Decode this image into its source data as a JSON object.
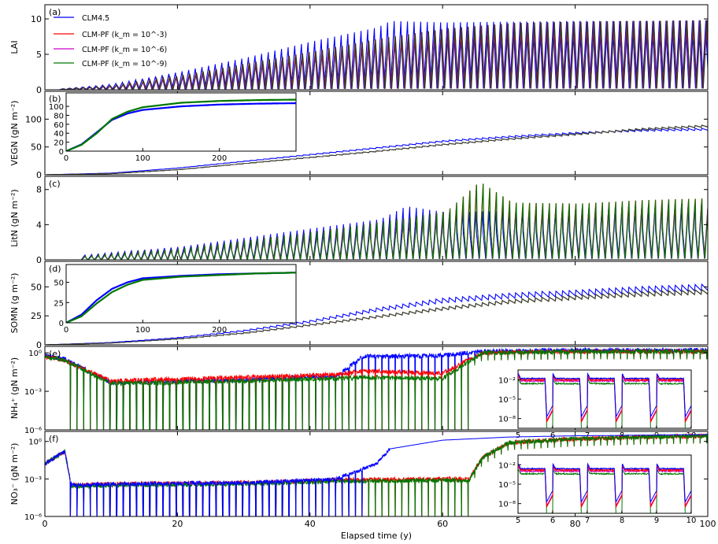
{
  "xlabel": "Elapsed time (y)",
  "legend": {
    "placement": "top-left",
    "entries": [
      "CLM4.5",
      "CLM-PF (k_m = 10^-3)",
      "CLM-PF (k_m = 10^-6)",
      "CLM-PF (k_m = 10^-9)"
    ],
    "colors": [
      "#0000ff",
      "#ff0000",
      "#cc00cc",
      "#007700"
    ]
  },
  "chart_data": [
    {
      "id": "a",
      "type": "line",
      "panel_label": "(a)",
      "ylabel": "LAI",
      "xlim": [
        0,
        100
      ],
      "ylim": [
        0,
        12
      ],
      "yticks": [
        0,
        5,
        10
      ],
      "xticks": [
        0,
        20,
        40,
        60,
        80,
        100
      ],
      "series": [
        {
          "name": "CLM4.5",
          "peak_envelope": {
            "x": [
              2,
              10,
              20,
              30,
              40,
              50,
              52,
              60,
              70,
              80,
              90,
              100
            ],
            "y": [
              0.1,
              0.8,
              2.5,
              4.5,
              6.8,
              8.8,
              9.7,
              9.5,
              9.6,
              9.7,
              9.7,
              9.8
            ]
          }
        },
        {
          "name": "CLM-PF (k_m = 10^-3)",
          "peak_envelope": {
            "x": [
              2,
              10,
              20,
              30,
              40,
              50,
              60,
              70,
              80,
              90,
              100
            ],
            "y": [
              0.1,
              0.6,
              2.0,
              3.7,
              5.4,
              7.2,
              8.6,
              9.4,
              9.6,
              9.7,
              9.8
            ]
          }
        },
        {
          "name": "CLM-PF (k_m = 10^-6)",
          "peak_envelope": {
            "x": [
              2,
              10,
              20,
              30,
              40,
              50,
              60,
              70,
              80,
              90,
              100
            ],
            "y": [
              0.1,
              0.6,
              2.0,
              3.7,
              5.4,
              7.2,
              8.6,
              9.4,
              9.6,
              9.7,
              9.8
            ]
          }
        },
        {
          "name": "CLM-PF (k_m = 10^-9)",
          "peak_envelope": {
            "x": [
              2,
              10,
              20,
              30,
              40,
              50,
              60,
              70,
              80,
              90,
              100
            ],
            "y": [
              0.1,
              0.6,
              2.0,
              3.7,
              5.4,
              7.2,
              8.6,
              9.4,
              9.6,
              9.7,
              9.8
            ]
          }
        }
      ]
    },
    {
      "id": "b",
      "type": "line",
      "panel_label": "(b)",
      "ylabel": "VEGN (gN m⁻²)",
      "xlim": [
        0,
        100
      ],
      "ylim": [
        0,
        150
      ],
      "yticks": [
        0,
        50,
        100
      ],
      "xticks": [
        0,
        20,
        40,
        60,
        80,
        100
      ],
      "series": [
        {
          "name": "CLM4.5",
          "x": [
            0,
            10,
            20,
            30,
            40,
            50,
            60,
            70,
            80,
            90,
            100
          ],
          "y": [
            0,
            3,
            12,
            24,
            36,
            48,
            60,
            68,
            75,
            80,
            82
          ]
        },
        {
          "name": "CLM-PF (k_m = 10^-9)",
          "x": [
            0,
            10,
            20,
            30,
            40,
            50,
            60,
            70,
            80,
            90,
            100
          ],
          "y": [
            0,
            2,
            9,
            20,
            31,
            42,
            54,
            64,
            73,
            82,
            88
          ]
        }
      ],
      "inset": {
        "xlim": [
          0,
          300
        ],
        "ylim": [
          0,
          130
        ],
        "xticks": [
          0,
          100,
          200
        ],
        "yticks": [
          0,
          20,
          40,
          60,
          80,
          100
        ],
        "series": [
          {
            "name": "CLM4.5",
            "x": [
              0,
              20,
              40,
              60,
              80,
              100,
              150,
              200,
              250,
              300
            ],
            "y": [
              0,
              15,
              42,
              70,
              84,
              92,
              100,
              104,
              106,
              107
            ]
          },
          {
            "name": "CLM-PF (k_m = 10^-9)",
            "x": [
              0,
              20,
              40,
              60,
              80,
              100,
              150,
              200,
              250,
              300
            ],
            "y": [
              0,
              14,
              40,
              72,
              88,
              98,
              108,
              112,
              114,
              115
            ]
          }
        ]
      }
    },
    {
      "id": "c",
      "type": "line",
      "panel_label": "(c)",
      "ylabel": "LitN (gN m⁻²)",
      "xlim": [
        0,
        100
      ],
      "ylim": [
        0,
        9.5
      ],
      "yticks": [
        0,
        4,
        8
      ],
      "xticks": [
        0,
        20,
        40,
        60,
        80,
        100
      ],
      "series": [
        {
          "name": "CLM4.5",
          "peak_envelope": {
            "x": [
              5,
              20,
              40,
              50,
              54,
              60,
              70,
              80,
              90,
              100
            ],
            "y": [
              0.5,
              1.5,
              3.6,
              4.6,
              6.1,
              5.4,
              5.6,
              5.8,
              6.2,
              6.5
            ]
          }
        },
        {
          "name": "CLM-PF (k_m = 10^-9)",
          "peak_envelope": {
            "x": [
              5,
              20,
              40,
              50,
              60,
              65,
              70,
              80,
              90,
              100
            ],
            "y": [
              0.4,
              1.3,
              3.2,
              4.3,
              5.5,
              8.9,
              6.5,
              6.4,
              6.8,
              7.0
            ]
          }
        }
      ]
    },
    {
      "id": "d",
      "type": "line",
      "panel_label": "(d)",
      "ylabel": "SOMN (g m⁻²)",
      "xlim": [
        0,
        100
      ],
      "ylim": [
        0,
        72
      ],
      "yticks": [
        0,
        25,
        50
      ],
      "xticks": [
        0,
        20,
        40,
        60,
        80,
        100
      ],
      "series": [
        {
          "name": "CLM4.5",
          "x": [
            0,
            10,
            20,
            30,
            40,
            50,
            60,
            70,
            80,
            90,
            100
          ],
          "y": [
            0,
            2,
            6,
            12,
            20,
            30,
            38,
            42,
            45,
            48,
            50
          ]
        },
        {
          "name": "CLM-PF (k_m = 10^-9)",
          "x": [
            0,
            10,
            20,
            30,
            40,
            50,
            60,
            70,
            80,
            90,
            100
          ],
          "y": [
            0,
            1.5,
            5,
            10,
            17,
            24,
            31,
            37,
            41,
            44,
            46
          ]
        }
      ],
      "inset": {
        "xlim": [
          0,
          300
        ],
        "ylim": [
          0,
          72
        ],
        "xticks": [
          0,
          100,
          200
        ],
        "yticks": [
          0,
          25,
          50
        ],
        "series": [
          {
            "name": "CLM4.5",
            "x": [
              0,
              20,
              40,
              60,
              80,
              100,
              150,
              200,
              250,
              300
            ],
            "y": [
              0,
              10,
              28,
              42,
              50,
              55,
              58,
              60,
              61,
              62
            ]
          },
          {
            "name": "CLM-PF (k_m = 10^-9)",
            "x": [
              0,
              20,
              40,
              60,
              80,
              100,
              150,
              200,
              250,
              300
            ],
            "y": [
              0,
              8,
              24,
              38,
              47,
              53,
              57,
              59,
              61,
              62
            ]
          }
        ]
      }
    },
    {
      "id": "e",
      "type": "line",
      "panel_label": "(e)",
      "ylabel": "NH₄⁺ (gN m⁻²)",
      "xlim": [
        0,
        100
      ],
      "yscale": "log",
      "ylim_log10": [
        -6,
        0.5
      ],
      "yticks_log10": [
        -6,
        -3,
        0
      ],
      "ytick_labels": [
        "10⁻⁶",
        "10⁻³",
        "10⁰"
      ],
      "xticks": [
        0,
        20,
        40,
        60,
        80,
        100
      ],
      "series": [
        {
          "name": "CLM4.5",
          "baseline_log10": {
            "x": [
              0,
              3,
              10,
              30,
              44,
              48,
              60,
              66,
              80,
              100
            ],
            "y": [
              -0.2,
              -0.5,
              -2.3,
              -2.1,
              -1.8,
              -0.3,
              -0.2,
              0.1,
              0.2,
              0.2
            ]
          }
        },
        {
          "name": "CLM-PF (k_m = 10^-3)",
          "baseline_log10": {
            "x": [
              0,
              3,
              10,
              30,
              44,
              48,
              60,
              66,
              80,
              100
            ],
            "y": [
              -0.3,
              -0.6,
              -2.2,
              -1.9,
              -1.7,
              -1.4,
              -1.6,
              0.0,
              0.1,
              0.1
            ]
          }
        },
        {
          "name": "CLM-PF (k_m = 10^-9)",
          "baseline_log10": {
            "x": [
              0,
              3,
              10,
              30,
              44,
              48,
              60,
              66,
              80,
              100
            ],
            "y": [
              -0.3,
              -0.6,
              -2.4,
              -2.2,
              -2.0,
              -1.9,
              -2.0,
              0.0,
              0.1,
              0.1
            ]
          }
        }
      ],
      "inset": {
        "xlim": [
          5,
          10
        ],
        "xticks": [
          5,
          6,
          7,
          8,
          9,
          10
        ],
        "ylim_log10": [
          -9.5,
          -0.5
        ],
        "yticks_log10": [
          -8,
          -5,
          -2
        ],
        "ytick_labels": [
          "10⁻⁸",
          "10⁻⁵",
          "10⁻²"
        ]
      }
    },
    {
      "id": "f",
      "type": "line",
      "panel_label": "(f)",
      "ylabel": "NO₃⁻ (gN m⁻²)",
      "xlim": [
        0,
        100
      ],
      "yscale": "log",
      "ylim_log10": [
        -6,
        0.8
      ],
      "yticks_log10": [
        -6,
        -3,
        0
      ],
      "ytick_labels": [
        "10⁻⁶",
        "10⁻³",
        "10⁰"
      ],
      "xticks": [
        0,
        20,
        40,
        60,
        80,
        100
      ],
      "series": [
        {
          "name": "CLM4.5",
          "baseline_log10": {
            "x": [
              0,
              3,
              4,
              10,
              30,
              44,
              50,
              52,
              60,
              70,
              80,
              90,
              100
            ],
            "y": [
              -1.8,
              -0.8,
              -3.5,
              -3.4,
              -3.3,
              -3.0,
              -1.8,
              -0.6,
              0.1,
              0.35,
              0.45,
              0.5,
              0.55
            ]
          }
        },
        {
          "name": "CLM-PF (k_m = 10^-3)",
          "baseline_log10": {
            "x": [
              0,
              3,
              4,
              10,
              30,
              44,
              60,
              64,
              66,
              70,
              80,
              90,
              100
            ],
            "y": [
              -1.8,
              -0.8,
              -3.5,
              -3.4,
              -3.3,
              -3.1,
              -3.0,
              -3.0,
              -1.3,
              -0.1,
              0.2,
              0.35,
              0.45
            ]
          }
        },
        {
          "name": "CLM-PF (k_m = 10^-9)",
          "baseline_log10": {
            "x": [
              0,
              3,
              4,
              10,
              30,
              44,
              60,
              64,
              66,
              70,
              80,
              90,
              100
            ],
            "y": [
              -1.8,
              -0.8,
              -3.6,
              -3.5,
              -3.4,
              -3.2,
              -3.1,
              -3.1,
              -1.3,
              -0.1,
              0.2,
              0.35,
              0.45
            ]
          }
        }
      ],
      "inset": {
        "xlim": [
          5,
          10
        ],
        "xticks": [
          5,
          6,
          7,
          8,
          9,
          10
        ],
        "ylim_log10": [
          -9.5,
          -0.5
        ],
        "yticks_log10": [
          -8,
          -5,
          -2
        ],
        "ytick_labels": [
          "10⁻⁸",
          "10⁻⁵",
          "10⁻²"
        ]
      }
    }
  ]
}
